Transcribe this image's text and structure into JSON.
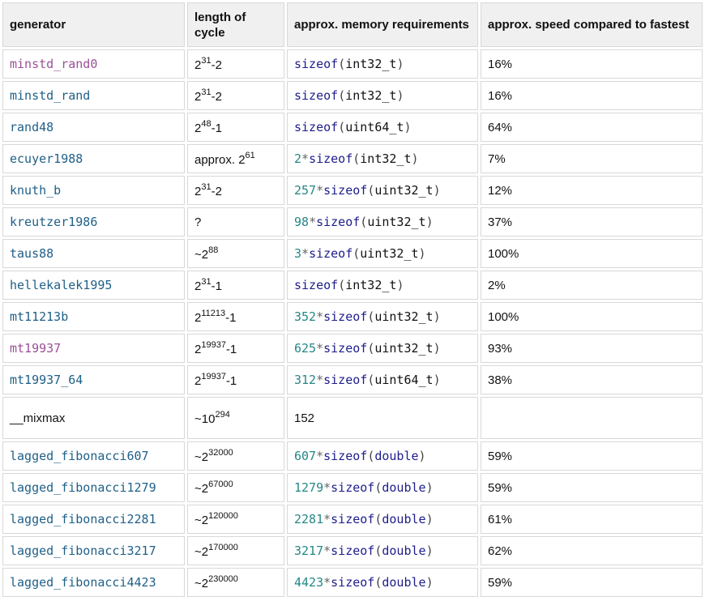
{
  "headers": {
    "generator": "generator",
    "cycle": "length of cycle",
    "memory": "approx. memory requirements",
    "speed": "approx. speed compared to fastest"
  },
  "rows": [
    {
      "name": "minstd_rand0",
      "name_style": "visited",
      "cycle_base": "2",
      "cycle_exp": "31",
      "cycle_suffix": "-2",
      "mem_num": "",
      "mem_op": "",
      "mem_kw": "sizeof",
      "mem_open": "(",
      "mem_type": "int32_t",
      "mem_close": ")",
      "speed": "16%"
    },
    {
      "name": "minstd_rand",
      "name_style": "link",
      "cycle_base": "2",
      "cycle_exp": "31",
      "cycle_suffix": "-2",
      "mem_num": "",
      "mem_op": "",
      "mem_kw": "sizeof",
      "mem_open": "(",
      "mem_type": "int32_t",
      "mem_close": ")",
      "speed": "16%"
    },
    {
      "name": "rand48",
      "name_style": "link",
      "cycle_base": "2",
      "cycle_exp": "48",
      "cycle_suffix": "-1",
      "mem_num": "",
      "mem_op": "",
      "mem_kw": "sizeof",
      "mem_open": "(",
      "mem_type": "uint64_t",
      "mem_close": ")",
      "speed": "64%"
    },
    {
      "name": "ecuyer1988",
      "name_style": "link",
      "cycle_base": "approx. 2",
      "cycle_exp": "61",
      "cycle_suffix": "",
      "mem_num": "2",
      "mem_op": "*",
      "mem_kw": "sizeof",
      "mem_open": "(",
      "mem_type": "int32_t",
      "mem_close": ")",
      "speed": "7%"
    },
    {
      "name": "knuth_b",
      "name_style": "link",
      "cycle_base": "2",
      "cycle_exp": "31",
      "cycle_suffix": "-2",
      "mem_num": "257",
      "mem_op": "*",
      "mem_kw": "sizeof",
      "mem_open": "(",
      "mem_type": "uint32_t",
      "mem_close": ")",
      "speed": "12%"
    },
    {
      "name": "kreutzer1986",
      "name_style": "link",
      "cycle_base": "?",
      "cycle_exp": "",
      "cycle_suffix": "",
      "mem_num": "98",
      "mem_op": "*",
      "mem_kw": "sizeof",
      "mem_open": "(",
      "mem_type": "uint32_t",
      "mem_close": ")",
      "speed": "37%"
    },
    {
      "name": "taus88",
      "name_style": "link",
      "cycle_base": "~2",
      "cycle_exp": "88",
      "cycle_suffix": "",
      "mem_num": "3",
      "mem_op": "*",
      "mem_kw": "sizeof",
      "mem_open": "(",
      "mem_type": "uint32_t",
      "mem_close": ")",
      "speed": "100%"
    },
    {
      "name": "hellekalek1995",
      "name_style": "link",
      "cycle_base": "2",
      "cycle_exp": "31",
      "cycle_suffix": "-1",
      "mem_num": "",
      "mem_op": "",
      "mem_kw": "sizeof",
      "mem_open": "(",
      "mem_type": "int32_t",
      "mem_close": ")",
      "speed": "2%"
    },
    {
      "name": "mt11213b",
      "name_style": "link",
      "cycle_base": "2",
      "cycle_exp": "11213",
      "cycle_suffix": "-1",
      "mem_num": "352",
      "mem_op": "*",
      "mem_kw": "sizeof",
      "mem_open": "(",
      "mem_type": "uint32_t",
      "mem_close": ")",
      "speed": "100%"
    },
    {
      "name": "mt19937",
      "name_style": "visited",
      "cycle_base": "2",
      "cycle_exp": "19937",
      "cycle_suffix": "-1",
      "mem_num": "625",
      "mem_op": "*",
      "mem_kw": "sizeof",
      "mem_open": "(",
      "mem_type": "uint32_t",
      "mem_close": ")",
      "speed": "93%"
    },
    {
      "name": "mt19937_64",
      "name_style": "link",
      "cycle_base": "2",
      "cycle_exp": "19937",
      "cycle_suffix": "-1",
      "mem_num": "312",
      "mem_op": "*",
      "mem_kw": "sizeof",
      "mem_open": "(",
      "mem_type": "uint64_t",
      "mem_close": ")",
      "speed": "38%"
    },
    {
      "name": "__mixmax",
      "name_style": "plain",
      "cycle_base": "~10",
      "cycle_exp": "294",
      "cycle_suffix": "",
      "mem_plain": "152",
      "speed": "",
      "tall": true
    },
    {
      "name": "lagged_fibonacci607",
      "name_style": "link",
      "cycle_base": "~2",
      "cycle_exp": "32000",
      "cycle_suffix": "",
      "mem_num": "607",
      "mem_op": "*",
      "mem_kw": "sizeof",
      "mem_open": "(",
      "mem_type": "double",
      "mem_type_kw": true,
      "mem_close": ")",
      "speed": "59%"
    },
    {
      "name": "lagged_fibonacci1279",
      "name_style": "link",
      "cycle_base": "~2",
      "cycle_exp": "67000",
      "cycle_suffix": "",
      "mem_num": "1279",
      "mem_op": "*",
      "mem_kw": "sizeof",
      "mem_open": "(",
      "mem_type": "double",
      "mem_type_kw": true,
      "mem_close": ")",
      "speed": "59%"
    },
    {
      "name": "lagged_fibonacci2281",
      "name_style": "link",
      "cycle_base": "~2",
      "cycle_exp": "120000",
      "cycle_suffix": "",
      "mem_num": "2281",
      "mem_op": "*",
      "mem_kw": "sizeof",
      "mem_open": "(",
      "mem_type": "double",
      "mem_type_kw": true,
      "mem_close": ")",
      "speed": "61%"
    },
    {
      "name": "lagged_fibonacci3217",
      "name_style": "link",
      "cycle_base": "~2",
      "cycle_exp": "170000",
      "cycle_suffix": "",
      "mem_num": "3217",
      "mem_op": "*",
      "mem_kw": "sizeof",
      "mem_open": "(",
      "mem_type": "double",
      "mem_type_kw": true,
      "mem_close": ")",
      "speed": "62%"
    },
    {
      "name": "lagged_fibonacci4423",
      "name_style": "link",
      "cycle_base": "~2",
      "cycle_exp": "230000",
      "cycle_suffix": "",
      "mem_num": "4423",
      "mem_op": "*",
      "mem_kw": "sizeof",
      "mem_open": "(",
      "mem_type": "double",
      "mem_type_kw": true,
      "mem_close": ")",
      "speed": "59%"
    }
  ],
  "colors": {
    "link": "#1f5f87",
    "visited": "#9b4f96",
    "number": "#268787",
    "keyword": "#1d1d8c",
    "header_bg": "#f0f0f0",
    "border": "#d8d8d8"
  }
}
